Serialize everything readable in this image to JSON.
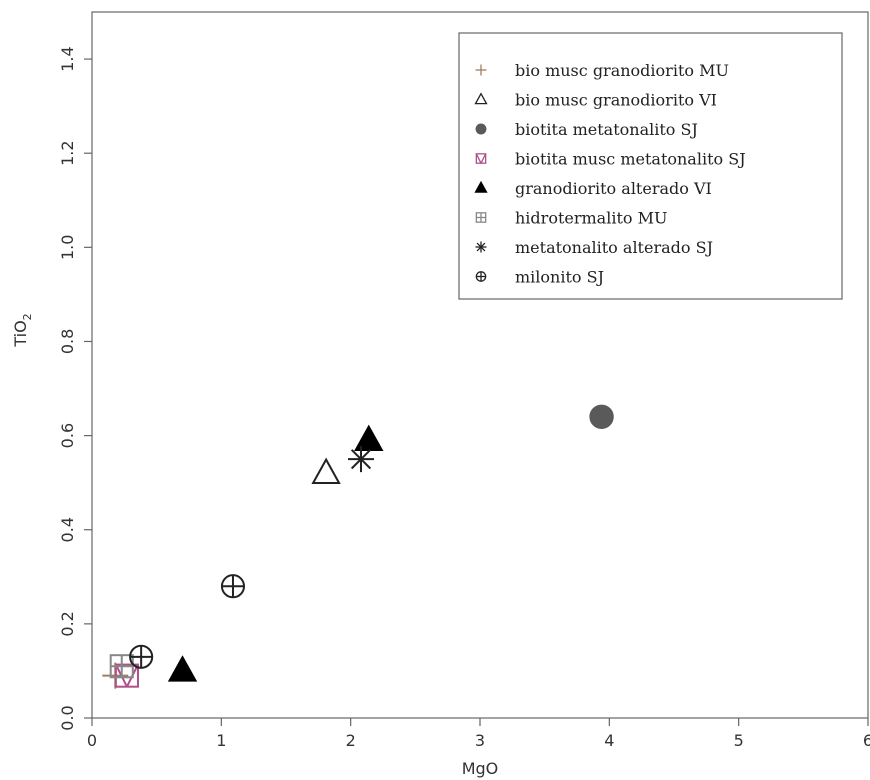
{
  "chart_data": {
    "type": "scatter",
    "title": "",
    "xlabel": "MgO",
    "ylabel": "TiO2",
    "xlim": [
      0,
      6
    ],
    "ylim": [
      0,
      1.5
    ],
    "xticks": [
      "0",
      "1",
      "2",
      "3",
      "4",
      "5",
      "6"
    ],
    "yticks": [
      "0.0",
      "0.2",
      "0.4",
      "0.6",
      "0.8",
      "1.0",
      "1.2",
      "1.4"
    ],
    "legend_position": "top-right",
    "grid": false,
    "series": [
      {
        "name": "bio musc granodiorito MU",
        "marker": "plus",
        "color": "#a08060",
        "points": [
          [
            0.18,
            0.09
          ]
        ]
      },
      {
        "name": "bio musc granodiorito VI",
        "marker": "triangle-open",
        "color": "#222222",
        "points": [
          [
            1.81,
            0.52
          ]
        ]
      },
      {
        "name": "biotita metatonalito SJ",
        "marker": "circle-filled",
        "color": "#5a5a5a",
        "points": [
          [
            3.94,
            0.64
          ]
        ]
      },
      {
        "name": "biotita musc metatonalito SJ",
        "marker": "square-cross",
        "color": "#b0508a",
        "points": [
          [
            0.27,
            0.09
          ]
        ]
      },
      {
        "name": "granodiorito alterado VI",
        "marker": "triangle-filled",
        "color": "#000000",
        "points": [
          [
            0.7,
            0.1
          ],
          [
            2.14,
            0.59
          ]
        ]
      },
      {
        "name": "hidrotermalito MU",
        "marker": "square-plus",
        "color": "#888888",
        "points": [
          [
            0.23,
            0.11
          ]
        ]
      },
      {
        "name": "metatonalito alterado SJ",
        "marker": "asterisk",
        "color": "#222222",
        "points": [
          [
            2.08,
            0.55
          ]
        ]
      },
      {
        "name": "milonito SJ",
        "marker": "circle-plus",
        "color": "#222222",
        "points": [
          [
            1.09,
            0.28
          ],
          [
            0.38,
            0.13
          ]
        ]
      }
    ]
  }
}
